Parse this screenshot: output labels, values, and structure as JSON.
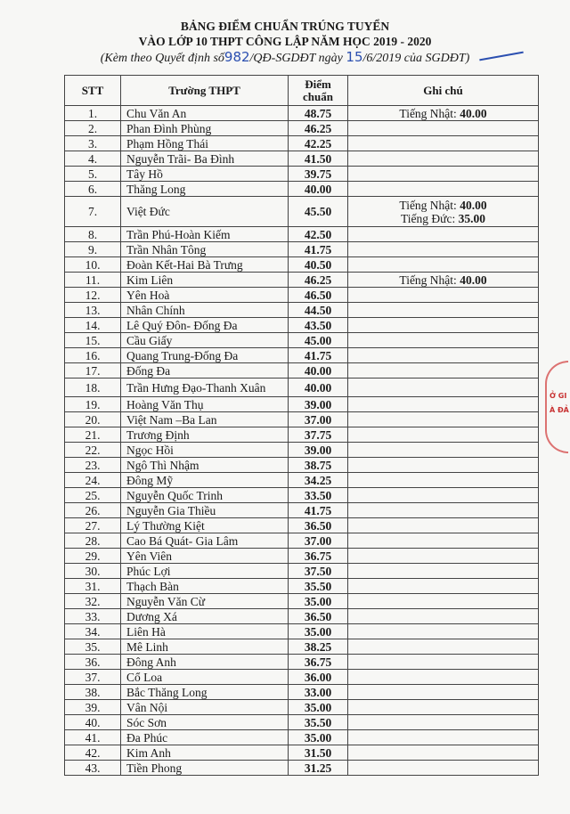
{
  "header": {
    "title_line1": "BẢNG ĐIỂM CHUẨN  TRÚNG TUYỂN",
    "title_line2": "VÀO LỚP 10 THPT CÔNG LẬP NĂM HỌC 2019 - 2020",
    "subtitle_prefix": "(Kèm theo Quyết định số",
    "decision_number": "982",
    "subtitle_middle": "/QĐ-SGDĐT ngày",
    "decision_day": "15",
    "subtitle_suffix": "/6/2019 của SGDĐT)"
  },
  "table": {
    "columns": [
      "STT",
      "Trường THPT",
      "Điểm chuẩn",
      "Ghi chú"
    ],
    "rows": [
      {
        "stt": "1.",
        "school": "Chu Văn An",
        "score": "48.75",
        "notes": [
          {
            "label": "Tiếng Nhật:",
            "value": "40.00"
          }
        ]
      },
      {
        "stt": "2.",
        "school": "Phan Đình Phùng",
        "score": "46.25",
        "notes": []
      },
      {
        "stt": "3.",
        "school": "Phạm Hồng Thái",
        "score": "42.25",
        "notes": []
      },
      {
        "stt": "4.",
        "school": "Nguyễn Trãi- Ba Đình",
        "score": "41.50",
        "notes": []
      },
      {
        "stt": "5.",
        "school": "Tây Hồ",
        "score": "39.75",
        "notes": []
      },
      {
        "stt": "6.",
        "school": "Thăng Long",
        "score": "40.00",
        "notes": []
      },
      {
        "stt": "7.",
        "school": "Việt Đức",
        "score": "45.50",
        "notes": [
          {
            "label": "Tiếng Nhật:",
            "value": "40.00"
          },
          {
            "label": "Tiếng Đức:",
            "value": "35.00"
          }
        ]
      },
      {
        "stt": "8.",
        "school": "Trần Phú-Hoàn Kiếm",
        "score": "42.50",
        "notes": []
      },
      {
        "stt": "9.",
        "school": "Trần Nhân Tông",
        "score": "41.75",
        "notes": []
      },
      {
        "stt": "10.",
        "school": "Đoàn Kết-Hai Bà Trưng",
        "score": "40.50",
        "notes": []
      },
      {
        "stt": "11.",
        "school": "Kim Liên",
        "score": "46.25",
        "notes": [
          {
            "label": "Tiếng Nhật:",
            "value": "40.00"
          }
        ]
      },
      {
        "stt": "12.",
        "school": "Yên Hoà",
        "score": "46.50",
        "notes": []
      },
      {
        "stt": "13.",
        "school": "Nhân Chính",
        "score": "44.50",
        "notes": []
      },
      {
        "stt": "14.",
        "school": "Lê Quý Đôn- Đống Đa",
        "score": "43.50",
        "notes": []
      },
      {
        "stt": "15.",
        "school": "Cầu Giấy",
        "score": "45.00",
        "notes": []
      },
      {
        "stt": "16.",
        "school": "Quang Trung-Đống Đa",
        "score": "41.75",
        "notes": []
      },
      {
        "stt": "17.",
        "school": "Đống Đa",
        "score": "40.00",
        "notes": []
      },
      {
        "stt": "18.",
        "school": "Trần Hưng Đạo-Thanh Xuân",
        "score": "40.00",
        "notes": []
      },
      {
        "stt": "19.",
        "school": "Hoàng Văn Thụ",
        "score": "39.00",
        "notes": []
      },
      {
        "stt": "20.",
        "school": "Việt Nam –Ba Lan",
        "score": "37.00",
        "notes": []
      },
      {
        "stt": "21.",
        "school": "Trương Định",
        "score": "37.75",
        "notes": []
      },
      {
        "stt": "22.",
        "school": "Ngọc Hồi",
        "score": "39.00",
        "notes": []
      },
      {
        "stt": "23.",
        "school": "Ngô Thì Nhậm",
        "score": "38.75",
        "notes": []
      },
      {
        "stt": "24.",
        "school": "Đông Mỹ",
        "score": "34.25",
        "notes": []
      },
      {
        "stt": "25.",
        "school": "Nguyễn Quốc Trinh",
        "score": "33.50",
        "notes": []
      },
      {
        "stt": "26.",
        "school": "Nguyễn Gia Thiều",
        "score": "41.75",
        "notes": []
      },
      {
        "stt": "27.",
        "school": "Lý Thường Kiệt",
        "score": "36.50",
        "notes": []
      },
      {
        "stt": "28.",
        "school": "Cao Bá Quát- Gia Lâm",
        "score": "37.00",
        "notes": []
      },
      {
        "stt": "29.",
        "school": "Yên Viên",
        "score": "36.75",
        "notes": []
      },
      {
        "stt": "30.",
        "school": "Phúc Lợi",
        "score": "37.50",
        "notes": []
      },
      {
        "stt": "31.",
        "school": "Thạch Bàn",
        "score": "35.50",
        "notes": []
      },
      {
        "stt": "32.",
        "school": "Nguyễn Văn Cừ",
        "score": "35.00",
        "notes": []
      },
      {
        "stt": "33.",
        "school": "Dương Xá",
        "score": "36.50",
        "notes": []
      },
      {
        "stt": "34.",
        "school": "Liên Hà",
        "score": "35.00",
        "notes": []
      },
      {
        "stt": "35.",
        "school": "Mê Linh",
        "score": "38.25",
        "notes": []
      },
      {
        "stt": "36.",
        "school": "Đông Anh",
        "score": "36.75",
        "notes": []
      },
      {
        "stt": "37.",
        "school": "Cổ Loa",
        "score": "36.00",
        "notes": []
      },
      {
        "stt": "38.",
        "school": "Bắc Thăng Long",
        "score": "33.00",
        "notes": []
      },
      {
        "stt": "39.",
        "school": "Vân Nội",
        "score": "35.00",
        "notes": []
      },
      {
        "stt": "40.",
        "school": "Sóc Sơn",
        "score": "35.50",
        "notes": []
      },
      {
        "stt": "41.",
        "school": "Đa Phúc",
        "score": "35.00",
        "notes": []
      },
      {
        "stt": "42.",
        "school": "Kim Anh",
        "score": "31.50",
        "notes": []
      },
      {
        "stt": "43.",
        "school": "Tiền Phong",
        "score": "31.25",
        "notes": []
      }
    ]
  },
  "stamp": {
    "color": "#c83232",
    "fragments": [
      "Ở GI",
      "À ĐẢ"
    ]
  },
  "ink_color": "#2b4fb0"
}
